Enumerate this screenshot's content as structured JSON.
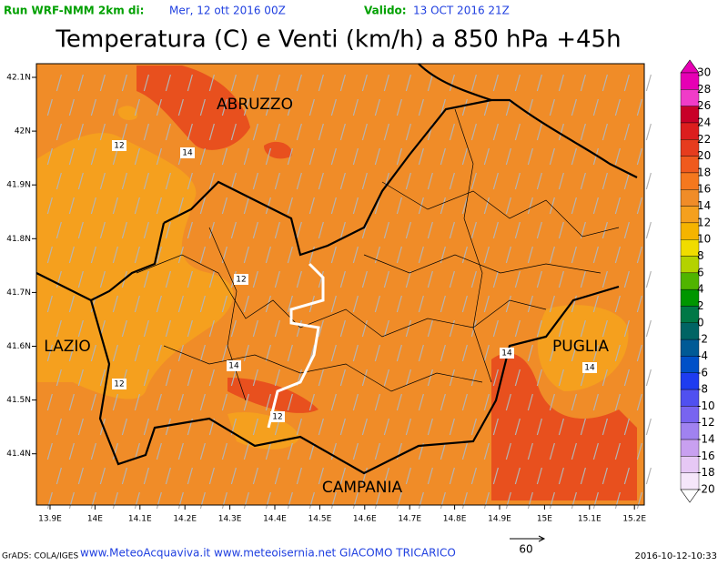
{
  "header": {
    "run_label": "Run WRF-NMM 2km di:",
    "run_date": "Mer, 12 ott 2016 00Z",
    "valid_label": "Valido:",
    "valid_date": "13 OCT 2016 21Z",
    "title": "Temperatura (C) e Venti (km/h) a 850 hPa +45h"
  },
  "map": {
    "x_labels": [
      "13.9E",
      "14E",
      "14.1E",
      "14.2E",
      "14.3E",
      "14.4E",
      "14.5E",
      "14.6E",
      "14.7E",
      "14.8E",
      "14.9E",
      "15E",
      "15.1E",
      "15.2E"
    ],
    "y_labels": [
      "42.1N",
      "42N",
      "41.9N",
      "41.8N",
      "41.7N",
      "41.6N",
      "41.5N",
      "41.4N"
    ],
    "regions": [
      "ABRUZZO",
      "LAZIO",
      "PUGLIA",
      "CAMPANIA"
    ],
    "contour_labels": [
      "12",
      "14",
      "12",
      "14",
      "12",
      "12",
      "14",
      "14"
    ]
  },
  "legend": {
    "labels": [
      "30",
      "28",
      "26",
      "24",
      "22",
      "20",
      "18",
      "16",
      "14",
      "12",
      "10",
      "8",
      "6",
      "4",
      "2",
      "0",
      "-2",
      "-4",
      "-6",
      "-8",
      "-10",
      "-12",
      "-14",
      "-16",
      "-18",
      "-20"
    ],
    "colors": [
      "#e600b4",
      "#f03cc8",
      "#c80028",
      "#dc1e1e",
      "#e63c1e",
      "#f05a1e",
      "#f5781e",
      "#f08c28",
      "#f5a01e",
      "#f5b400",
      "#f0dc00",
      "#b4d200",
      "#50b400",
      "#009600",
      "#007846",
      "#006464",
      "#005a96",
      "#0050c8",
      "#1e3cf0",
      "#5050f0",
      "#7864f0",
      "#a082f0",
      "#c8a0f0",
      "#e6c8f5",
      "#f5e6fa"
    ]
  },
  "footer": {
    "grads": "GrADS: COLA/IGES",
    "credits": "www.MeteoAcquaviva.it www.meteoisernia.net GIACOMO TRICARICO",
    "wind_ref": "60",
    "timestamp": "2016-10-12-10:33"
  }
}
